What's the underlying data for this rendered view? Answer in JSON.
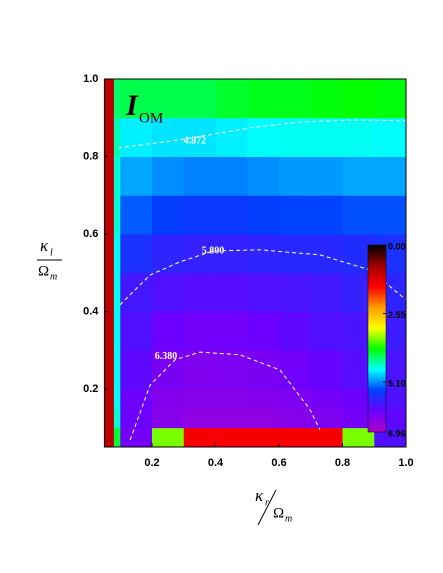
{
  "chart_data": {
    "type": "contour",
    "annotation": {
      "main": "I",
      "sub": "OM"
    },
    "xlabel": {
      "num": "κ",
      "num_sub": "r",
      "den": "Ω",
      "den_sub": "m"
    },
    "ylabel": {
      "num": "κ",
      "num_sub": "l",
      "den": "Ω",
      "den_sub": "m"
    },
    "xlim": [
      0.05,
      1.0
    ],
    "ylim": [
      0.05,
      1.0
    ],
    "xticks": [
      0.2,
      0.4,
      0.6,
      0.8,
      {
        "value": 1,
        "label": "1.0"
      }
    ],
    "yticks": [
      0.2,
      0.4,
      0.6,
      0.8,
      {
        "value": 1,
        "label": "1.0"
      }
    ],
    "x_edges": [
      0.05,
      0.08,
      0.1,
      0.2,
      0.3,
      0.4,
      0.5,
      0.6,
      0.7,
      0.8,
      0.9,
      1.0
    ],
    "y_edges": [
      0.05,
      0.1,
      0.15,
      0.2,
      0.3,
      0.4,
      0.5,
      0.6,
      0.7,
      0.8,
      0.9,
      1.0
    ],
    "z": [
      [
        1.0,
        4.0,
        6.3,
        3.5,
        1.5,
        1.5,
        1.5,
        1.5,
        1.5,
        3.5,
        6.0
      ],
      [
        1.0,
        4.5,
        6.2,
        6.5,
        6.6,
        6.6,
        6.6,
        6.5,
        6.4,
        6.3,
        6.1
      ],
      [
        1.0,
        4.6,
        6.2,
        6.45,
        6.5,
        6.5,
        6.45,
        6.4,
        6.3,
        6.2,
        6.0
      ],
      [
        1.0,
        4.6,
        6.1,
        6.35,
        6.42,
        6.4,
        6.35,
        6.25,
        6.15,
        6.05,
        5.95
      ],
      [
        1.0,
        4.6,
        6.0,
        6.2,
        6.25,
        6.25,
        6.2,
        6.1,
        6.0,
        5.95,
        5.85
      ],
      [
        1.0,
        4.6,
        5.9,
        6.0,
        6.05,
        6.05,
        6.0,
        5.95,
        5.9,
        5.8,
        5.75
      ],
      [
        1.0,
        4.6,
        5.6,
        5.75,
        5.8,
        5.8,
        5.75,
        5.7,
        5.7,
        5.65,
        5.6
      ],
      [
        1.0,
        4.5,
        5.3,
        5.45,
        5.5,
        5.5,
        5.45,
        5.4,
        5.4,
        5.35,
        5.35
      ],
      [
        1.0,
        4.5,
        5.0,
        5.1,
        5.15,
        5.15,
        5.1,
        5.05,
        5.05,
        5.0,
        5.0
      ],
      [
        1.0,
        4.4,
        4.7,
        4.75,
        4.75,
        4.7,
        4.65,
        4.6,
        4.6,
        4.6,
        4.65
      ],
      [
        1.0,
        4.2,
        4.1,
        4.1,
        4.1,
        4.0,
        3.95,
        3.95,
        3.9,
        3.85,
        3.9
      ]
    ],
    "clim": [
      0,
      6.96
    ],
    "colormap": [
      "#000000",
      "#a00000",
      "#ff0000",
      "#ff9900",
      "#ffff00",
      "#00ff00",
      "#00ffff",
      "#0040ff",
      "#6a00ff",
      "#b000c8"
    ],
    "cbar_ticks": [
      {
        "value": 0,
        "label": "0.00"
      },
      2.55,
      {
        "value": 5.1,
        "label": "5.10"
      },
      6.96
    ],
    "contour_color": "#ffffff",
    "contours": [
      {
        "level": 4.872,
        "label": "4.872",
        "label_at": [
          0.335,
          0.84
        ],
        "x": [
          0.093,
          0.288,
          0.509,
          0.666,
          0.824,
          1.0
        ],
        "y": [
          0.822,
          0.843,
          0.874,
          0.889,
          0.894,
          0.892
        ]
      },
      {
        "level": 5.8,
        "label": "5.800",
        "label_at": [
          0.392,
          0.556
        ],
        "x": [
          0.099,
          0.194,
          0.288,
          0.392,
          0.54,
          0.729,
          0.887,
          1.0
        ],
        "y": [
          0.417,
          0.494,
          0.528,
          0.556,
          0.559,
          0.546,
          0.507,
          0.43
        ]
      },
      {
        "level": 6.38,
        "label": "6.380",
        "label_at": [
          0.244,
          0.283
        ],
        "x": [
          0.131,
          0.194,
          0.272,
          0.351,
          0.477,
          0.603,
          0.698,
          0.729
        ],
        "y": [
          0.068,
          0.21,
          0.275,
          0.295,
          0.288,
          0.249,
          0.146,
          0.094
        ]
      }
    ]
  }
}
